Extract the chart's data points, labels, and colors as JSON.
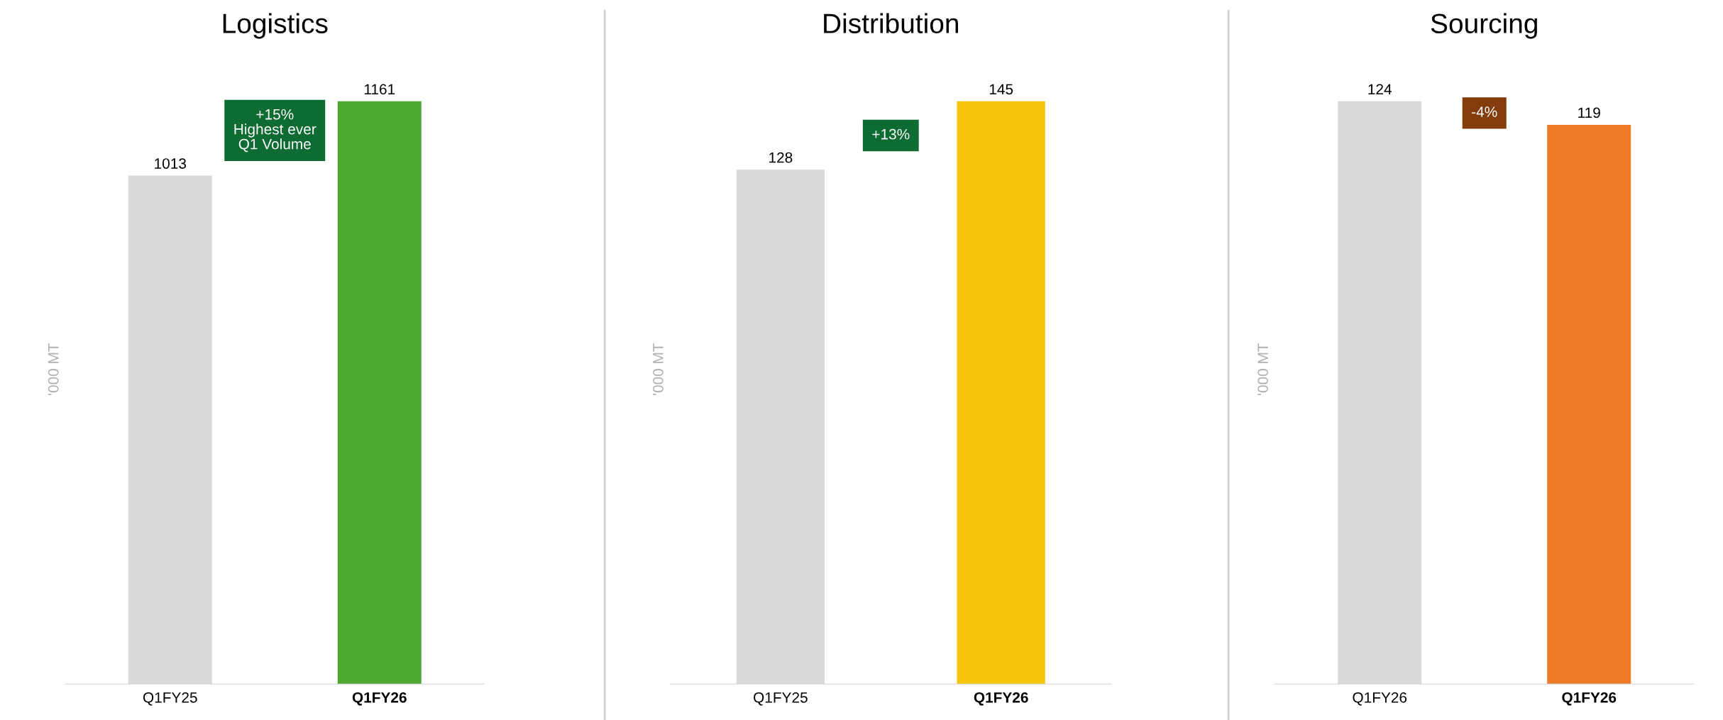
{
  "chart_data": [
    {
      "type": "bar",
      "title": "Logistics",
      "ylabel": "'000 MT",
      "categories": [
        "Q1FY25",
        "Q1FY26"
      ],
      "values": [
        1013,
        1161
      ],
      "colors": [
        "#d9d9d9",
        "#4ea72e"
      ],
      "data_labels": true,
      "annotations": [
        "+15%\nHighest ever\nQ1 Volume"
      ],
      "grid": false,
      "legend": false
    },
    {
      "type": "bar",
      "title": "Distribution",
      "ylabel": "'000 MT",
      "categories": [
        "Q1FY25",
        "Q1FY26"
      ],
      "values": [
        128,
        145
      ],
      "colors": [
        "#d9d9d9",
        "#f5c40b"
      ],
      "data_labels": true,
      "annotations": [
        "+13%"
      ],
      "grid": false,
      "legend": false
    },
    {
      "type": "bar",
      "title": "Sourcing",
      "ylabel": "'000 MT",
      "categories": [
        "Q1FY26",
        "Q1FY26"
      ],
      "values": [
        124,
        119
      ],
      "colors": [
        "#d9d9d9",
        "#ee7b28"
      ],
      "data_labels": true,
      "annotations": [
        "-4%"
      ],
      "grid": false,
      "legend": false
    }
  ]
}
